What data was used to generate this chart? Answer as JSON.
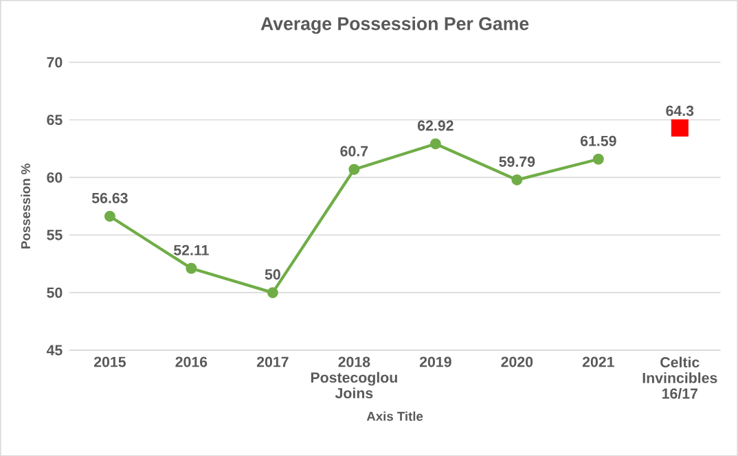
{
  "chart_data": {
    "type": "line",
    "title": "Average Possession Per Game",
    "xlabel": "Axis Title",
    "ylabel": "Possession %",
    "categories": [
      "2015",
      "2016",
      "2017",
      "2018 Postecoglou Joins",
      "2019",
      "2020",
      "2021",
      "Celtic Invincibles 16/17"
    ],
    "series": [
      {
        "color": "#70ad47",
        "marker": "circle",
        "line_style": "solid",
        "values": [
          56.63,
          52.11,
          50,
          60.7,
          62.92,
          59.79,
          61.59,
          null
        ]
      },
      {
        "type": "scatter",
        "color": "#ff0000",
        "marker": "square",
        "values": [
          null,
          null,
          null,
          null,
          null,
          null,
          null,
          64.3
        ]
      }
    ],
    "ylim": [
      45,
      70
    ],
    "yticks": [
      45,
      50,
      55,
      60,
      65,
      70
    ],
    "grid": "y",
    "data_labels": true
  }
}
